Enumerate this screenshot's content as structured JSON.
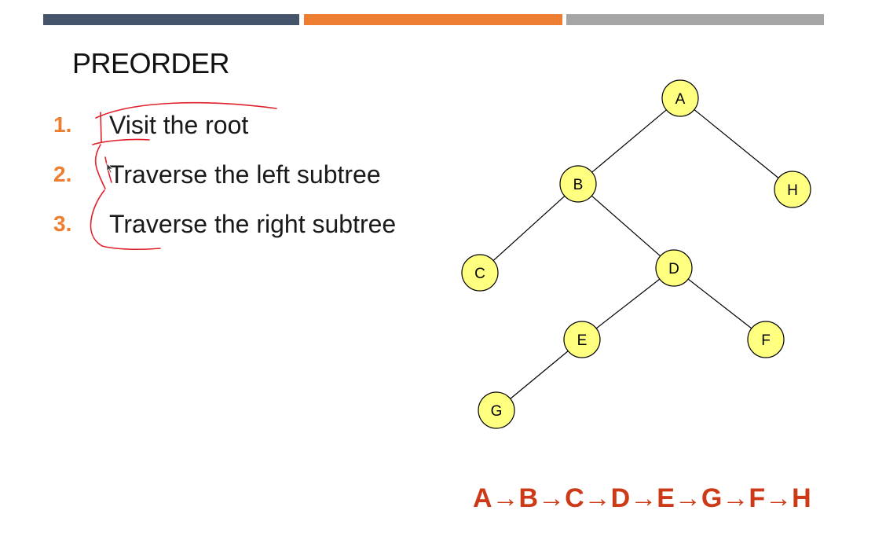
{
  "slide": {
    "title": "PREORDER",
    "colors": {
      "bar_dark": "#44546a",
      "bar_orange": "#ed7d31",
      "bar_gray": "#a5a5a5",
      "step_number": "#ed7d31",
      "node_fill": "#ffff80",
      "traversal": "#cc3a17",
      "annotation_ink": "#e0202a"
    },
    "steps": [
      {
        "number": "1.",
        "text": "Visit the root"
      },
      {
        "number": "2.",
        "text": "Traverse the left subtree"
      },
      {
        "number": "3.",
        "text": "Traverse the right subtree"
      }
    ],
    "traversal_sequence": "A→B→C→D→E→G→F→H"
  },
  "tree": {
    "nodes": [
      {
        "id": "A",
        "label": "A"
      },
      {
        "id": "B",
        "label": "B"
      },
      {
        "id": "H",
        "label": "H"
      },
      {
        "id": "C",
        "label": "C"
      },
      {
        "id": "D",
        "label": "D"
      },
      {
        "id": "E",
        "label": "E"
      },
      {
        "id": "F",
        "label": "F"
      },
      {
        "id": "G",
        "label": "G"
      }
    ],
    "edges": [
      [
        "A",
        "B"
      ],
      [
        "A",
        "H"
      ],
      [
        "B",
        "C"
      ],
      [
        "B",
        "D"
      ],
      [
        "D",
        "E"
      ],
      [
        "D",
        "F"
      ],
      [
        "E",
        "G"
      ]
    ]
  }
}
